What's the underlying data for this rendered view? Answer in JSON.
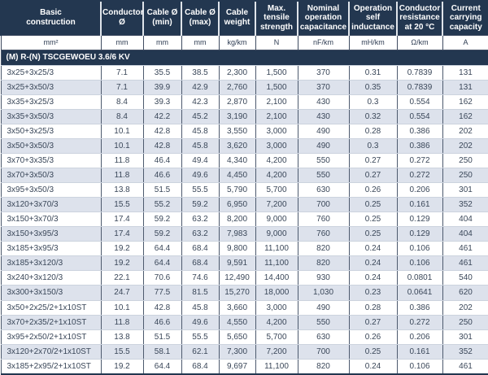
{
  "table": {
    "columns": [
      {
        "label": "Basic\nconstruction",
        "unit": "mm²"
      },
      {
        "label": "Conductor\nØ",
        "unit": "mm"
      },
      {
        "label": "Cable Ø\n(min)",
        "unit": "mm"
      },
      {
        "label": "Cable Ø\n(max)",
        "unit": "mm"
      },
      {
        "label": "Cable\nweight",
        "unit": "kg/km"
      },
      {
        "label": "Max.\ntensile\nstrength",
        "unit": "N"
      },
      {
        "label": "Nominal\noperation\ncapacitance",
        "unit": "nF/km"
      },
      {
        "label": "Operation\nself\ninductance",
        "unit": "mH/km"
      },
      {
        "label": "Conductor\nresistance\nat 20 °C",
        "unit": "Ω/km"
      },
      {
        "label": "Current\ncarrying\ncapacity",
        "unit": "A"
      }
    ],
    "section_title": "(M) R-(N) TSCGEWOEU 3.6/6 KV",
    "rows": [
      [
        "3x25+3x25/3",
        "7.1",
        "35.5",
        "38.5",
        "2,300",
        "1,500",
        "370",
        "0.31",
        "0.7839",
        "131"
      ],
      [
        "3x25+3x50/3",
        "7.1",
        "39.9",
        "42.9",
        "2,760",
        "1,500",
        "370",
        "0.35",
        "0.7839",
        "131"
      ],
      [
        "3x35+3x25/3",
        "8.4",
        "39.3",
        "42.3",
        "2,870",
        "2,100",
        "430",
        "0.3",
        "0.554",
        "162"
      ],
      [
        "3x35+3x50/3",
        "8.4",
        "42.2",
        "45.2",
        "3,190",
        "2,100",
        "430",
        "0.32",
        "0.554",
        "162"
      ],
      [
        "3x50+3x25/3",
        "10.1",
        "42.8",
        "45.8",
        "3,550",
        "3,000",
        "490",
        "0.28",
        "0.386",
        "202"
      ],
      [
        "3x50+3x50/3",
        "10.1",
        "42.8",
        "45.8",
        "3,620",
        "3,000",
        "490",
        "0.3",
        "0.386",
        "202"
      ],
      [
        "3x70+3x35/3",
        "11.8",
        "46.4",
        "49.4",
        "4,340",
        "4,200",
        "550",
        "0.27",
        "0.272",
        "250"
      ],
      [
        "3x70+3x50/3",
        "11.8",
        "46.6",
        "49.6",
        "4,450",
        "4,200",
        "550",
        "0.27",
        "0.272",
        "250"
      ],
      [
        "3x95+3x50/3",
        "13.8",
        "51.5",
        "55.5",
        "5,790",
        "5,700",
        "630",
        "0.26",
        "0.206",
        "301"
      ],
      [
        "3x120+3x70/3",
        "15.5",
        "55.2",
        "59.2",
        "6,950",
        "7,200",
        "700",
        "0.25",
        "0.161",
        "352"
      ],
      [
        "3x150+3x70/3",
        "17.4",
        "59.2",
        "63.2",
        "8,200",
        "9,000",
        "760",
        "0.25",
        "0.129",
        "404"
      ],
      [
        "3x150+3x95/3",
        "17.4",
        "59.2",
        "63.2",
        "7,983",
        "9,000",
        "760",
        "0.25",
        "0.129",
        "404"
      ],
      [
        "3x185+3x95/3",
        "19.2",
        "64.4",
        "68.4",
        "9,800",
        "11,100",
        "820",
        "0.24",
        "0.106",
        "461"
      ],
      [
        "3x185+3x120/3",
        "19.2",
        "64.4",
        "68.4",
        "9,591",
        "11,100",
        "820",
        "0.24",
        "0.106",
        "461"
      ],
      [
        "3x240+3x120/3",
        "22.1",
        "70.6",
        "74.6",
        "12,490",
        "14,400",
        "930",
        "0.24",
        "0.0801",
        "540"
      ],
      [
        "3x300+3x150/3",
        "24.7",
        "77.5",
        "81.5",
        "15,270",
        "18,000",
        "1,030",
        "0.23",
        "0.0641",
        "620"
      ],
      [
        "3x50+2x25/2+1x10ST",
        "10.1",
        "42.8",
        "45.8",
        "3,660",
        "3,000",
        "490",
        "0.28",
        "0.386",
        "202"
      ],
      [
        "3x70+2x35/2+1x10ST",
        "11.8",
        "46.6",
        "49.6",
        "4,550",
        "4,200",
        "550",
        "0.27",
        "0.272",
        "250"
      ],
      [
        "3x95+2x50/2+1x10ST",
        "13.8",
        "51.5",
        "55.5",
        "5,650",
        "5,700",
        "630",
        "0.26",
        "0.206",
        "301"
      ],
      [
        "3x120+2x70/2+1x10ST",
        "15.5",
        "58.1",
        "62.1",
        "7,300",
        "7,200",
        "700",
        "0.25",
        "0.161",
        "352"
      ],
      [
        "3x185+2x95/2+1x10ST",
        "19.2",
        "64.4",
        "68.4",
        "9,697",
        "11,100",
        "820",
        "0.24",
        "0.106",
        "461"
      ]
    ]
  },
  "colors": {
    "header_bg": "#233750",
    "stripe_bg": "#dde2ec",
    "text": "#3a4759",
    "grid_vertical": "#4d5a6e",
    "grid_horizontal": "#ccd3de"
  }
}
